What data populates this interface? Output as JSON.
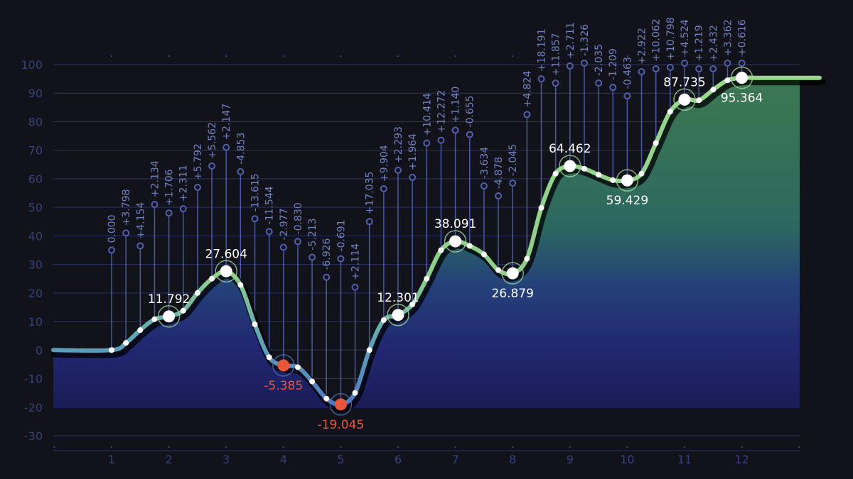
{
  "chart_data": {
    "type": "line",
    "xlabel": "",
    "ylabel": "",
    "ylim": [
      -30,
      100
    ],
    "y_ticks": [
      "100",
      "90",
      "80",
      "70",
      "60",
      "50",
      "40",
      "30",
      "20",
      "10",
      "0",
      "-10",
      "-20",
      "-30"
    ],
    "x_ticks": [
      "1",
      "2",
      "3",
      "4",
      "5",
      "6",
      "7",
      "8",
      "9",
      "10",
      "11",
      "12"
    ],
    "grid": true,
    "series": [
      {
        "values": [
          {
            "x": 1.0,
            "y": 0.0
          },
          {
            "x": 1.25,
            "y": 2.5
          },
          {
            "x": 1.5,
            "y": 7.0
          },
          {
            "x": 1.75,
            "y": 10.8
          },
          {
            "x": 2.0,
            "y": 11.792
          },
          {
            "x": 2.25,
            "y": 13.8
          },
          {
            "x": 2.5,
            "y": 20.0
          },
          {
            "x": 2.75,
            "y": 25.0
          },
          {
            "x": 3.0,
            "y": 27.604
          },
          {
            "x": 3.25,
            "y": 22.8
          },
          {
            "x": 3.5,
            "y": 9.0
          },
          {
            "x": 3.75,
            "y": -2.5
          },
          {
            "x": 4.0,
            "y": -5.385
          },
          {
            "x": 4.25,
            "y": -6.0
          },
          {
            "x": 4.5,
            "y": -11.0
          },
          {
            "x": 4.75,
            "y": -17.0
          },
          {
            "x": 5.0,
            "y": -19.045
          },
          {
            "x": 5.25,
            "y": -15.0
          },
          {
            "x": 5.5,
            "y": 0.0
          },
          {
            "x": 5.75,
            "y": 10.5
          },
          {
            "x": 6.0,
            "y": 12.301
          },
          {
            "x": 6.25,
            "y": 16.0
          },
          {
            "x": 6.5,
            "y": 25.0
          },
          {
            "x": 6.75,
            "y": 35.0
          },
          {
            "x": 7.0,
            "y": 38.091
          },
          {
            "x": 7.25,
            "y": 36.5
          },
          {
            "x": 7.5,
            "y": 33.5
          },
          {
            "x": 7.75,
            "y": 28.0
          },
          {
            "x": 8.0,
            "y": 26.879
          },
          {
            "x": 8.25,
            "y": 32.0
          },
          {
            "x": 8.5,
            "y": 49.8
          },
          {
            "x": 8.75,
            "y": 61.8
          },
          {
            "x": 9.0,
            "y": 64.462
          },
          {
            "x": 9.25,
            "y": 63.5
          },
          {
            "x": 9.5,
            "y": 61.4
          },
          {
            "x": 9.75,
            "y": 59.5
          },
          {
            "x": 10.0,
            "y": 59.429
          },
          {
            "x": 10.25,
            "y": 61.8
          },
          {
            "x": 10.5,
            "y": 72.5
          },
          {
            "x": 10.75,
            "y": 83.5
          },
          {
            "x": 11.0,
            "y": 87.735
          },
          {
            "x": 11.25,
            "y": 87.5
          },
          {
            "x": 11.5,
            "y": 91.2
          },
          {
            "x": 11.75,
            "y": 94.5
          },
          {
            "x": 12.0,
            "y": 95.364
          },
          {
            "x": 12.25,
            "y": 95.364
          },
          {
            "x": 13.0,
            "y": 95.364
          }
        ]
      }
    ],
    "key_points": [
      {
        "x": 2,
        "y": 11.792,
        "label": "11.792",
        "position": "above",
        "color": "#ffffff"
      },
      {
        "x": 3,
        "y": 27.604,
        "label": "27.604",
        "position": "above",
        "color": "#ffffff"
      },
      {
        "x": 4,
        "y": -5.385,
        "label": "-5.385",
        "position": "below",
        "color": "#e8553a"
      },
      {
        "x": 5,
        "y": -19.045,
        "label": "-19.045",
        "position": "below",
        "color": "#e8553a"
      },
      {
        "x": 6,
        "y": 12.301,
        "label": "12.301",
        "position": "above",
        "color": "#ffffff"
      },
      {
        "x": 7,
        "y": 38.091,
        "label": "38.091",
        "position": "above",
        "color": "#ffffff"
      },
      {
        "x": 8,
        "y": 26.879,
        "label": "26.879",
        "position": "below",
        "color": "#ffffff"
      },
      {
        "x": 9,
        "y": 64.462,
        "label": "64.462",
        "position": "above",
        "color": "#ffffff"
      },
      {
        "x": 10,
        "y": 59.429,
        "label": "59.429",
        "position": "below",
        "color": "#ffffff"
      },
      {
        "x": 11,
        "y": 87.735,
        "label": "87.735",
        "position": "above",
        "color": "#ffffff"
      },
      {
        "x": 12,
        "y": 95.364,
        "label": "95.364",
        "position": "below",
        "color": "#ffffff"
      }
    ],
    "delta_labels": [
      {
        "x": 1.0,
        "label": "0.000",
        "pin": 35
      },
      {
        "x": 1.25,
        "label": "+3.798",
        "pin": 41
      },
      {
        "x": 1.5,
        "label": "+4.154",
        "pin": 36.5
      },
      {
        "x": 1.75,
        "label": "+2.134",
        "pin": 51
      },
      {
        "x": 2.0,
        "label": "+1.706",
        "pin": 48
      },
      {
        "x": 2.25,
        "label": "+2.311",
        "pin": 49.5
      },
      {
        "x": 2.5,
        "label": "+5.792",
        "pin": 57
      },
      {
        "x": 2.75,
        "label": "+5.562",
        "pin": 64.5
      },
      {
        "x": 3.0,
        "label": "+2.147",
        "pin": 71
      },
      {
        "x": 3.25,
        "label": "-4.853",
        "pin": 62.5
      },
      {
        "x": 3.5,
        "label": "-13.615",
        "pin": 46
      },
      {
        "x": 3.75,
        "label": "-11.544",
        "pin": 41.5
      },
      {
        "x": 4.0,
        "label": "-2.977",
        "pin": 36
      },
      {
        "x": 4.25,
        "label": "-0.830",
        "pin": 38
      },
      {
        "x": 4.5,
        "label": "-5.213",
        "pin": 32.5
      },
      {
        "x": 4.75,
        "label": "-6.926",
        "pin": 25.5
      },
      {
        "x": 5.0,
        "label": "-0.691",
        "pin": 32
      },
      {
        "x": 5.25,
        "label": "+2.114",
        "pin": 22
      },
      {
        "x": 5.5,
        "label": "+17.035",
        "pin": 45
      },
      {
        "x": 5.75,
        "label": "+9.904",
        "pin": 56.5
      },
      {
        "x": 6.0,
        "label": "+2.293",
        "pin": 63
      },
      {
        "x": 6.25,
        "label": "+1.964",
        "pin": 60.5
      },
      {
        "x": 6.5,
        "label": "+10.414",
        "pin": 72.5
      },
      {
        "x": 6.75,
        "label": "+12.272",
        "pin": 73.5
      },
      {
        "x": 7.0,
        "label": "+1.140",
        "pin": 77
      },
      {
        "x": 7.25,
        "label": "-0.655",
        "pin": 75.5
      },
      {
        "x": 7.5,
        "label": "-3.634",
        "pin": 57.5
      },
      {
        "x": 7.75,
        "label": "-4.878",
        "pin": 54
      },
      {
        "x": 8.0,
        "label": "-2.045",
        "pin": 58.5
      },
      {
        "x": 8.25,
        "label": "+4.824",
        "pin": 82.5
      },
      {
        "x": 8.5,
        "label": "+18.191",
        "pin": 95
      },
      {
        "x": 8.75,
        "label": "+11.857",
        "pin": 93.5
      },
      {
        "x": 9.0,
        "label": "+2.711",
        "pin": 99.5
      },
      {
        "x": 9.25,
        "label": "-1.326",
        "pin": 100.5
      },
      {
        "x": 9.5,
        "label": "-2.035",
        "pin": 93.5
      },
      {
        "x": 9.75,
        "label": "-1.209",
        "pin": 92
      },
      {
        "x": 10.0,
        "label": "-0.463",
        "pin": 89
      },
      {
        "x": 10.25,
        "label": "+2.922",
        "pin": 97.5
      },
      {
        "x": 10.5,
        "label": "+10.062",
        "pin": 98.5
      },
      {
        "x": 10.75,
        "label": "+10.798",
        "pin": 99
      },
      {
        "x": 11.0,
        "label": "+4.524",
        "pin": 100.5
      },
      {
        "x": 11.25,
        "label": "+1.219",
        "pin": 98.5
      },
      {
        "x": 11.5,
        "label": "+2.432",
        "pin": 98.5
      },
      {
        "x": 11.75,
        "label": "+3.362",
        "pin": 100.5
      },
      {
        "x": 12.0,
        "label": "+0.616",
        "pin": 100.5
      }
    ],
    "colors": {
      "background": "#12131a",
      "grid": "#2a3368",
      "axis_text": "#36407a",
      "stem": "#5060b0",
      "delta_text": "#7080c0",
      "positive": "#8fd18a",
      "negative": "#4a80c8",
      "negative_point": "#e8553a",
      "area_top": "#3f7d55",
      "area_mid": "#2a5f7a",
      "area_bottom": "#1e1f66"
    }
  }
}
